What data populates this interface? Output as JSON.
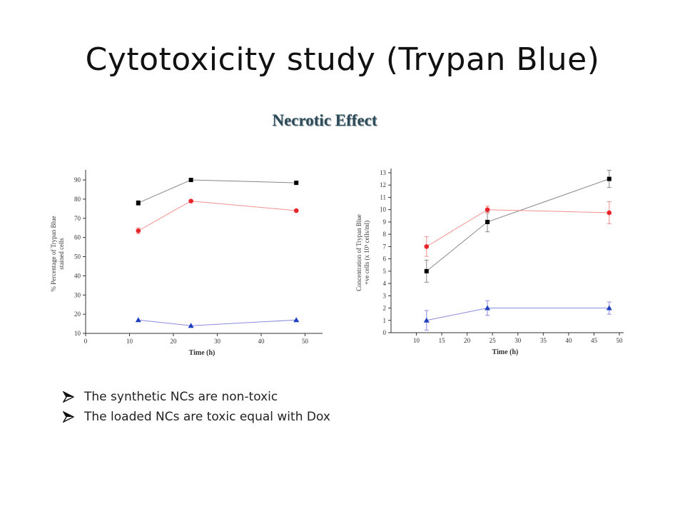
{
  "slide": {
    "title": "Cytotoxicity study (Trypan Blue)",
    "subtitle": "Necrotic Effect"
  },
  "bullets": [
    {
      "text": "The synthetic NCs are non-toxic",
      "icon": "arrow-bullet-icon"
    },
    {
      "text": "The loaded NCs are toxic equal with Dox",
      "icon": "arrow-bullet-icon"
    }
  ],
  "chart_data": [
    {
      "type": "scatter",
      "xlabel": "Time (h)",
      "ylabel": "% Percentage of Trypan Blue stained cells",
      "ylabel_lines": [
        "% Percentage of Trypan Blue",
        "stained cells"
      ],
      "xlim": [
        0,
        53
      ],
      "ylim": [
        10,
        93
      ],
      "xticks": [
        0,
        10,
        20,
        30,
        40,
        50
      ],
      "yticks": [
        10,
        20,
        30,
        40,
        50,
        60,
        70,
        80,
        90
      ],
      "grid": false,
      "series": [
        {
          "marker": "square",
          "color": "#000000",
          "line_color": "#888888",
          "x": [
            12,
            24,
            48
          ],
          "y": [
            78,
            90,
            88.5
          ],
          "err": [
            1.2,
            0,
            0
          ]
        },
        {
          "marker": "circle",
          "color": "#e8252a",
          "line_color": "#f09090",
          "x": [
            12,
            24,
            48
          ],
          "y": [
            63.5,
            79,
            74
          ],
          "err": [
            1.5,
            0,
            0
          ]
        },
        {
          "marker": "triangle",
          "color": "#1f3fbf",
          "line_color": "#8a8ae0",
          "x": [
            12,
            24,
            48
          ],
          "y": [
            17,
            14,
            17
          ],
          "err": [
            0,
            0,
            0
          ]
        }
      ]
    },
    {
      "type": "scatter",
      "xlabel": "Time (h)",
      "ylabel": "Concentration of Trypan Blue +ve cells (x 10^5 cells/ml)",
      "ylabel_lines": [
        "Concentration of Trypan Blue",
        "+ve cells (x 10⁵ cells/ml)"
      ],
      "xlim": [
        5,
        50
      ],
      "ylim": [
        0,
        13
      ],
      "xticks": [
        10,
        15,
        20,
        25,
        30,
        35,
        40,
        45,
        50
      ],
      "yticks": [
        0,
        1,
        2,
        3,
        4,
        5,
        6,
        7,
        8,
        9,
        10,
        11,
        12,
        13
      ],
      "grid": false,
      "series": [
        {
          "marker": "square",
          "color": "#000000",
          "line_color": "#888888",
          "x": [
            12,
            24,
            48
          ],
          "y": [
            5,
            9,
            12.5
          ],
          "err": [
            0.9,
            0.8,
            0.7
          ]
        },
        {
          "marker": "circle",
          "color": "#e8252a",
          "line_color": "#f09090",
          "x": [
            12,
            24,
            48
          ],
          "y": [
            7,
            10,
            9.75
          ],
          "err": [
            0.8,
            0.3,
            0.9
          ]
        },
        {
          "marker": "triangle",
          "color": "#1f3fbf",
          "line_color": "#8a8ae0",
          "x": [
            12,
            24,
            48
          ],
          "y": [
            1,
            2,
            2
          ],
          "err": [
            0.8,
            0.6,
            0.5
          ]
        }
      ]
    }
  ]
}
